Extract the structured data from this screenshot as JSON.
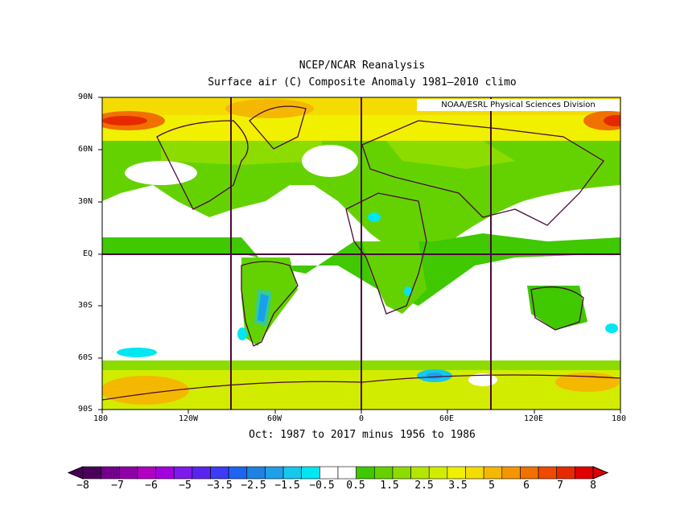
{
  "titles": {
    "line1": "NCEP/NCAR Reanalysis",
    "line2": "Surface air (C) Composite Anomaly 1981–2010 climo",
    "credit": "NOAA/ESRL Physical Sciences Division",
    "period": "Oct: 1987 to 2017 minus 1956 to 1986"
  },
  "axes": {
    "lat_labels": [
      "90N",
      "60N",
      "30N",
      "EQ",
      "30S",
      "60S",
      "90S"
    ],
    "lon_labels": [
      "180",
      "120W",
      "60W",
      "0",
      "60E",
      "120E",
      "180"
    ]
  },
  "colorbar": {
    "labels": [
      "−8",
      "−7",
      "−6",
      "−5",
      "−3.5",
      "−2.5",
      "−1.5",
      "−0.5",
      "0.5",
      "1.5",
      "2.5",
      "3.5",
      "5",
      "6",
      "7",
      "8"
    ],
    "colors": [
      "#4a0059",
      "#73008a",
      "#9000a8",
      "#b000c2",
      "#a300e0",
      "#7f1aee",
      "#5a24f0",
      "#3c3cf6",
      "#1e64f0",
      "#1e82e0",
      "#1ea0e8",
      "#14c8ee",
      "#00e6f2",
      "#ffffff",
      "#ffffff",
      "#40c800",
      "#64d200",
      "#8cdc00",
      "#b4e600",
      "#d2ec00",
      "#f0f000",
      "#f5dc00",
      "#f5b800",
      "#f59600",
      "#f07000",
      "#ee4a00",
      "#e62a00",
      "#e00000"
    ]
  },
  "chart_data": {
    "type": "heatmap",
    "title": "NCEP/NCAR Reanalysis",
    "subtitle": "Surface air (C) Composite Anomaly 1981–2010 climo",
    "xlabel": "Oct: 1987 to 2017 minus 1956 to 1986",
    "xlim": [
      -180,
      180
    ],
    "ylim": [
      -90,
      90
    ],
    "units": "C"
  }
}
